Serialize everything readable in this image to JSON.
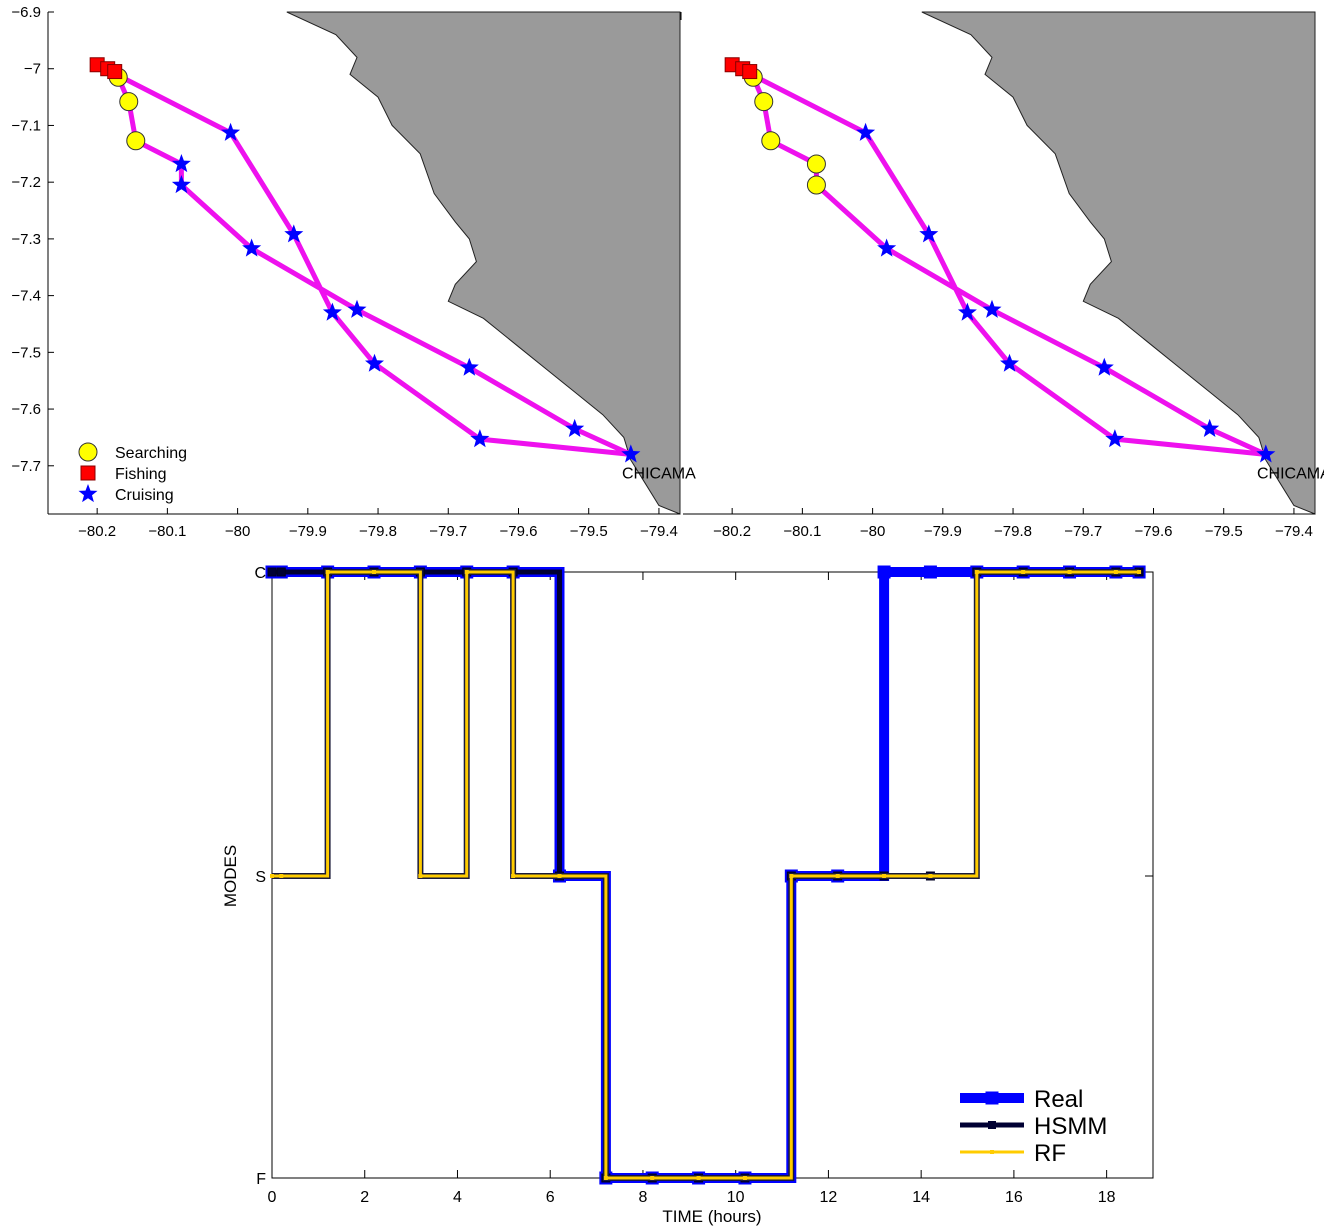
{
  "chart_data": [
    {
      "type": "scatter",
      "panel": "map-left",
      "xlim": [
        -80.27,
        -79.37
      ],
      "ylim": [
        -7.785,
        -6.9
      ],
      "x_ticks": [
        -80.2,
        -80.1,
        -80,
        -79.9,
        -79.8,
        -79.7,
        -79.6,
        -79.5,
        -79.4
      ],
      "x_tick_labels": [
        "−80.2",
        "−80.1",
        "−80",
        "−79.9",
        "−79.8",
        "−79.7",
        "−79.6",
        "−79.5",
        "−79.4"
      ],
      "y_ticks": [
        -6.9,
        -7,
        -7.1,
        -7.2,
        -7.3,
        -7.4,
        -7.5,
        -7.6,
        -7.7
      ],
      "y_tick_labels": [
        "−6.9",
        "−7",
        "−7.1",
        "−7.2",
        "−7.3",
        "−7.4",
        "−7.5",
        "−7.6",
        "−7.7"
      ],
      "port_label": "CHICAMA",
      "track_color": "#ee11ee",
      "land_color": "#9a9a9a",
      "coastline": [
        [
          -79.93,
          -6.9
        ],
        [
          -79.86,
          -6.94
        ],
        [
          -79.83,
          -6.98
        ],
        [
          -79.84,
          -7.01
        ],
        [
          -79.8,
          -7.05
        ],
        [
          -79.78,
          -7.1
        ],
        [
          -79.74,
          -7.15
        ],
        [
          -79.72,
          -7.22
        ],
        [
          -79.69,
          -7.27
        ],
        [
          -79.67,
          -7.3
        ],
        [
          -79.66,
          -7.34
        ],
        [
          -79.69,
          -7.38
        ],
        [
          -79.7,
          -7.41
        ],
        [
          -79.65,
          -7.44
        ],
        [
          -79.63,
          -7.46
        ],
        [
          -79.6,
          -7.49
        ],
        [
          -79.56,
          -7.53
        ],
        [
          -79.52,
          -7.57
        ],
        [
          -79.48,
          -7.61
        ],
        [
          -79.45,
          -7.65
        ],
        [
          -79.44,
          -7.69
        ],
        [
          -79.42,
          -7.73
        ],
        [
          -79.4,
          -7.77
        ]
      ],
      "track": [
        [
          -79.44,
          -7.68
        ],
        [
          -79.52,
          -7.635
        ],
        [
          -79.67,
          -7.527
        ],
        [
          -79.83,
          -7.425
        ],
        [
          -79.98,
          -7.317
        ],
        [
          -80.08,
          -7.205
        ],
        [
          -80.08,
          -7.168
        ],
        [
          -80.145,
          -7.127
        ],
        [
          -80.155,
          -7.058
        ],
        [
          -80.17,
          -7.015
        ],
        [
          -80.175,
          -7.005
        ],
        [
          -80.185,
          -7.0
        ],
        [
          -80.2,
          -6.993
        ],
        [
          -80.01,
          -7.113
        ],
        [
          -79.92,
          -7.292
        ],
        [
          -79.865,
          -7.43
        ],
        [
          -79.805,
          -7.52
        ],
        [
          -79.655,
          -7.653
        ],
        [
          -79.44,
          -7.68
        ]
      ],
      "series": [
        {
          "name": "Searching",
          "color": "#ffff00",
          "points": [
            [
              -80.17,
              -7.015
            ],
            [
              -80.155,
              -7.058
            ],
            [
              -80.145,
              -7.127
            ]
          ]
        },
        {
          "name": "Fishing",
          "color": "#ff0000",
          "points": [
            [
              -80.2,
              -6.993
            ],
            [
              -80.185,
              -7.0
            ],
            [
              -80.175,
              -7.005
            ]
          ]
        },
        {
          "name": "Cruising",
          "color": "#0000ff",
          "points": [
            [
              -79.44,
              -7.68
            ],
            [
              -79.52,
              -7.635
            ],
            [
              -79.67,
              -7.527
            ],
            [
              -79.83,
              -7.425
            ],
            [
              -79.98,
              -7.317
            ],
            [
              -80.08,
              -7.205
            ],
            [
              -80.08,
              -7.168
            ],
            [
              -80.01,
              -7.113
            ],
            [
              -79.92,
              -7.292
            ],
            [
              -79.865,
              -7.43
            ],
            [
              -79.805,
              -7.52
            ],
            [
              -79.655,
              -7.653
            ]
          ]
        }
      ],
      "legend_position": "bottom-left"
    },
    {
      "type": "scatter",
      "panel": "map-right",
      "xlim": [
        -80.27,
        -79.37
      ],
      "ylim": [
        -7.785,
        -6.9
      ],
      "x_ticks": [
        -80.2,
        -80.1,
        -80,
        -79.9,
        -79.8,
        -79.7,
        -79.6,
        -79.5,
        -79.4
      ],
      "x_tick_labels": [
        "−80.2",
        "−80.1",
        "−80",
        "−79.9",
        "−79.8",
        "−79.7",
        "−79.6",
        "−79.5",
        "−79.4"
      ],
      "port_label": "CHICAMA",
      "track": [
        [
          -79.44,
          -7.68
        ],
        [
          -79.52,
          -7.635
        ],
        [
          -79.67,
          -7.527
        ],
        [
          -79.83,
          -7.425
        ],
        [
          -79.98,
          -7.317
        ],
        [
          -80.08,
          -7.205
        ],
        [
          -80.08,
          -7.168
        ],
        [
          -80.145,
          -7.127
        ],
        [
          -80.155,
          -7.058
        ],
        [
          -80.17,
          -7.015
        ],
        [
          -80.175,
          -7.005
        ],
        [
          -80.185,
          -7.0
        ],
        [
          -80.2,
          -6.993
        ],
        [
          -80.01,
          -7.113
        ],
        [
          -79.92,
          -7.292
        ],
        [
          -79.865,
          -7.43
        ],
        [
          -79.805,
          -7.52
        ],
        [
          -79.655,
          -7.653
        ],
        [
          -79.44,
          -7.68
        ]
      ],
      "series": [
        {
          "name": "Searching",
          "color": "#ffff00",
          "points": [
            [
              -80.17,
              -7.015
            ],
            [
              -80.155,
              -7.058
            ],
            [
              -80.145,
              -7.127
            ],
            [
              -80.08,
              -7.168
            ],
            [
              -80.08,
              -7.205
            ]
          ]
        },
        {
          "name": "Fishing",
          "color": "#ff0000",
          "points": [
            [
              -80.2,
              -6.993
            ],
            [
              -80.185,
              -7.0
            ],
            [
              -80.175,
              -7.005
            ]
          ]
        },
        {
          "name": "Cruising",
          "color": "#0000ff",
          "points": [
            [
              -79.44,
              -7.68
            ],
            [
              -79.52,
              -7.635
            ],
            [
              -79.67,
              -7.527
            ],
            [
              -79.83,
              -7.425
            ],
            [
              -79.98,
              -7.317
            ],
            [
              -80.01,
              -7.113
            ],
            [
              -79.92,
              -7.292
            ],
            [
              -79.865,
              -7.43
            ],
            [
              -79.805,
              -7.52
            ],
            [
              -79.655,
              -7.653
            ]
          ]
        }
      ]
    },
    {
      "type": "line",
      "panel": "modes",
      "xlabel": "TIME (hours)",
      "ylabel": "MODES",
      "xlim": [
        0,
        19
      ],
      "x_ticks": [
        0,
        2,
        4,
        6,
        8,
        10,
        12,
        14,
        16,
        18
      ],
      "y_categories": [
        "F",
        "S",
        "C"
      ],
      "x": [
        0,
        0.2,
        1.2,
        2.2,
        3.2,
        4.2,
        5.2,
        6.2,
        7.2,
        8.2,
        9.2,
        10.2,
        11.2,
        12.2,
        13.2,
        14.2,
        15.2,
        16.2,
        17.2,
        18.2,
        18.7
      ],
      "series": [
        {
          "name": "Real",
          "color": "#0000ff",
          "values": [
            "C",
            "C",
            "C",
            "C",
            "C",
            "C",
            "C",
            "S",
            "F",
            "F",
            "F",
            "F",
            "S",
            "S",
            "C",
            "C",
            "C",
            "C",
            "C",
            "C",
            "C"
          ]
        },
        {
          "name": "HSMM",
          "color": "#000033",
          "values": [
            "C",
            "C",
            "C",
            "C",
            "C",
            "C",
            "C",
            "S",
            "F",
            "F",
            "F",
            "F",
            "S",
            "S",
            "S",
            "S",
            "C",
            "C",
            "C",
            "C",
            "C"
          ]
        },
        {
          "name": "RF",
          "color": "#ffcc00",
          "values": [
            "S",
            "S",
            "C",
            "C",
            "S",
            "C",
            "S",
            "S",
            "F",
            "F",
            "F",
            "F",
            "S",
            "S",
            "S",
            "S",
            "C",
            "C",
            "C",
            "C",
            "C"
          ]
        }
      ],
      "legend_position": "bottom-right"
    }
  ]
}
